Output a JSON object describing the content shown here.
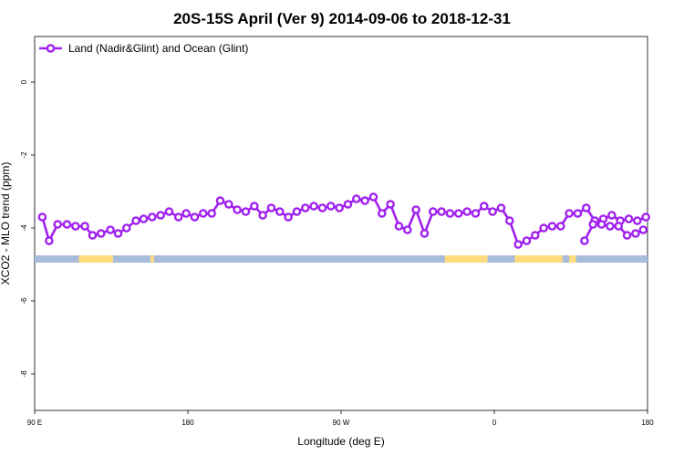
{
  "chart_data": {
    "type": "line",
    "title": "20S-15S April (Ver 9)   2014-09-06 to 2018-12-31",
    "xlabel": "Longitude (deg E)",
    "ylabel": "XCO2 - MLO trend (ppm)",
    "xlim": [
      90,
      450
    ],
    "ylim": [
      -9.0,
      1.25
    ],
    "x_ticks": [
      {
        "value": 90,
        "label": "90 E"
      },
      {
        "value": 180,
        "label": "180"
      },
      {
        "value": 270,
        "label": "90 W"
      },
      {
        "value": 360,
        "label": "0"
      },
      {
        "value": 450,
        "label": "180"
      }
    ],
    "y_ticks": [
      0,
      -2,
      -4,
      -6,
      -8
    ],
    "grid": false,
    "legend": {
      "position": "top-left"
    },
    "series": [
      {
        "name": "Land (Nadir&Glint) and Ocean (Glint)",
        "color": "#a020f0",
        "x": [
          94.5,
          98.5,
          103.5,
          109,
          114,
          119.5,
          124,
          129,
          134.5,
          139,
          144,
          149.5,
          154,
          159,
          164,
          169,
          174.5,
          179,
          184,
          189,
          194,
          199,
          204,
          209,
          214,
          219,
          224,
          229,
          234,
          239,
          244,
          249,
          254,
          259,
          264,
          269,
          274,
          279,
          284,
          289,
          294,
          299,
          304,
          309,
          314,
          319,
          324,
          329,
          334,
          339,
          344,
          349,
          354,
          359,
          364,
          369,
          374,
          379,
          384,
          389,
          394,
          399,
          404,
          409,
          414,
          419,
          424,
          429,
          434,
          439,
          444,
          449
        ],
        "y": [
          -3.7,
          -4.35,
          -3.9,
          -3.9,
          -3.95,
          -3.95,
          -4.2,
          -4.15,
          -4.05,
          -4.15,
          -4.0,
          -3.8,
          -3.75,
          -3.7,
          -3.65,
          -3.55,
          -3.7,
          -3.6,
          -3.7,
          -3.6,
          -3.6,
          -3.25,
          -3.35,
          -3.5,
          -3.55,
          -3.4,
          -3.65,
          -3.45,
          -3.55,
          -3.7,
          -3.55,
          -3.45,
          -3.4,
          -3.45,
          -3.4,
          -3.45,
          -3.35,
          -3.2,
          -3.25,
          -3.15,
          -3.6,
          -3.35,
          -3.95,
          -4.05,
          -3.5,
          -4.15,
          -3.55,
          -3.55,
          -3.6,
          -3.6,
          -3.55,
          -3.6,
          -3.4,
          -3.55,
          -3.45,
          -3.8,
          -4.45,
          -4.35,
          -4.2,
          -4.0,
          -3.95,
          -3.95,
          -3.6,
          -3.6,
          -3.45,
          -3.8,
          -3.75,
          -3.65,
          -3.8,
          -3.75,
          -3.8,
          -3.7
        ]
      },
      {
        "name": "Land (Nadir&Glint) and Ocean (Glint)",
        "color": "#a020f0",
        "x": [
          413,
          418,
          423,
          428,
          433,
          438,
          443,
          447.5
        ],
        "y": [
          -4.35,
          -3.9,
          -3.9,
          -3.95,
          -3.95,
          -4.2,
          -4.15,
          -4.05
        ]
      }
    ],
    "surface_strip": {
      "y_range": [
        -4.75,
        -4.95
      ],
      "ocean_color": "#a8bcdc",
      "land_color": "#ffdc80",
      "land_segments": [
        [
          116,
          136
        ],
        [
          158,
          160
        ],
        [
          331,
          356
        ],
        [
          372,
          400
        ],
        [
          404,
          408
        ],
        [
          515,
          543
        ]
      ]
    }
  }
}
